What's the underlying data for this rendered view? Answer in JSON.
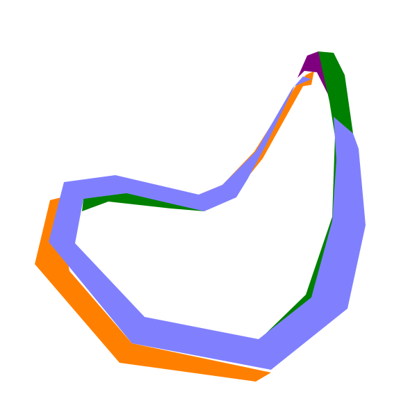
{
  "background": "#ffffff",
  "bands": [
    {
      "name": "orange-band",
      "color": "#ff8000"
    },
    {
      "name": "purple-band",
      "color": "#7f007f"
    },
    {
      "name": "green-band",
      "color": "#008000"
    },
    {
      "name": "periwinkle-band",
      "color": "#8080ff"
    }
  ]
}
